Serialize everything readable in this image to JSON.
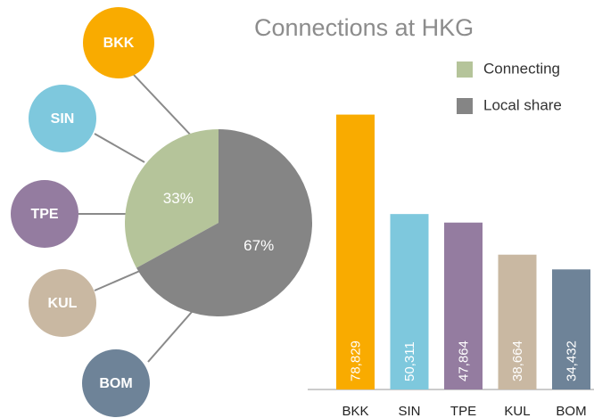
{
  "chart_data": [
    {
      "type": "pie",
      "title": "Connections at HKG",
      "categories": [
        "Connecting",
        "Local share"
      ],
      "values": [
        33,
        67
      ],
      "value_labels": [
        "33%",
        "67%"
      ],
      "colors": [
        "#b5c49a",
        "#858585"
      ],
      "legend": "top-right"
    },
    {
      "type": "bar",
      "categories": [
        "BKK",
        "SIN",
        "TPE",
        "KUL",
        "BOM"
      ],
      "values": [
        78829,
        50311,
        47864,
        38664,
        34432
      ],
      "value_labels": [
        "78,829",
        "50,311",
        "47,864",
        "38,664",
        "34,432"
      ],
      "colors": [
        "#f9ab00",
        "#7ec8dd",
        "#947ca0",
        "#c9b8a2",
        "#6e8398"
      ],
      "ylim": [
        0,
        80000
      ]
    }
  ]
}
